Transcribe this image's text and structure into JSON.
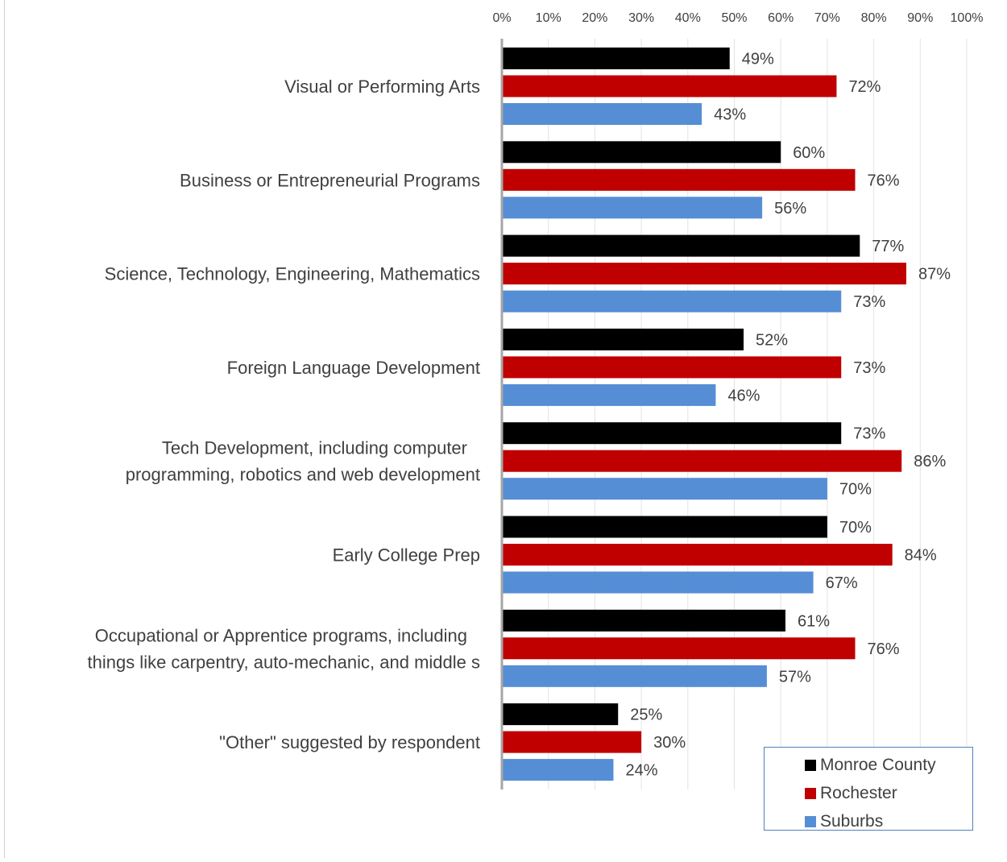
{
  "chart_data": {
    "type": "bar",
    "orientation": "horizontal",
    "title": "",
    "xlabel": "",
    "ylabel": "",
    "xlim": [
      0,
      100
    ],
    "x_ticks": [
      "0%",
      "10%",
      "20%",
      "30%",
      "40%",
      "50%",
      "60%",
      "70%",
      "80%",
      "90%",
      "100%"
    ],
    "grid": true,
    "legend_position": "bottom-right",
    "categories": [
      "Visual or  Performing Arts",
      "Business or Entrepreneurial Programs",
      "Science, Technology, Engineering, Mathematics",
      "Foreign Language Development",
      "Tech Development, including computer programming, robotics and web development",
      "Early College Prep",
      "Occupational or Apprentice programs, including things like carpentry, auto-mechanic, and middle s",
      "\"Other\" suggested by respondent"
    ],
    "category_lines": [
      [
        "Visual or  Performing Arts"
      ],
      [
        "Business or Entrepreneurial Programs"
      ],
      [
        "Science, Technology, Engineering, Mathematics"
      ],
      [
        "Foreign Language Development"
      ],
      [
        "Tech Development, including computer",
        "programming, robotics and web development"
      ],
      [
        "Early College Prep"
      ],
      [
        "Occupational or Apprentice programs, including",
        "things like carpentry, auto-mechanic, and middle s"
      ],
      [
        "\"Other\" suggested by respondent"
      ]
    ],
    "series": [
      {
        "name": "Monroe County",
        "color": "#000000",
        "values": [
          49,
          60,
          77,
          52,
          73,
          70,
          61,
          25
        ]
      },
      {
        "name": "Rochester",
        "color": "#c00000",
        "values": [
          72,
          76,
          87,
          73,
          86,
          84,
          76,
          30
        ]
      },
      {
        "name": "Suburbs",
        "color": "#558ed5",
        "values": [
          43,
          56,
          73,
          46,
          70,
          67,
          57,
          24
        ]
      }
    ],
    "value_suffix": "%"
  }
}
